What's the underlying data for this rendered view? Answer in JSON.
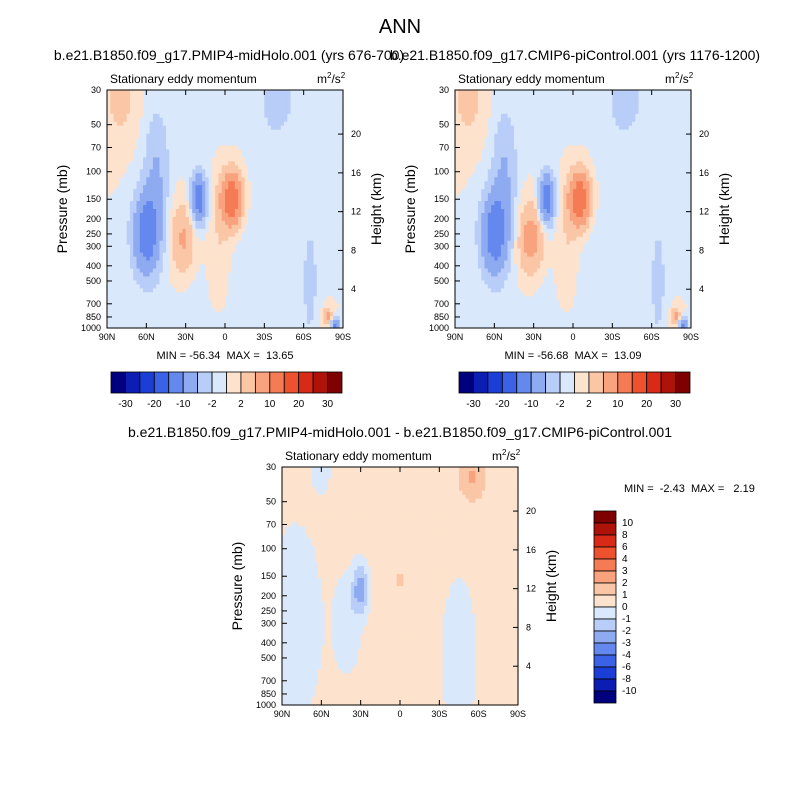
{
  "title": "ANN",
  "colors": {
    "neg": [
      "#00007f",
      "#0c1db3",
      "#1b3fd6",
      "#3b62e6",
      "#6488ee",
      "#8eaaf0",
      "#b8cdf7",
      "#dae8fb"
    ],
    "pos": [
      "#fde3cd",
      "#fbc6a6",
      "#f8a27e",
      "#f57b55",
      "#ee512d",
      "#d92a17",
      "#ae1209",
      "#7f0000"
    ],
    "lightBlue": "#d9e8fb",
    "lightPeach": "#fde4cf"
  },
  "chart_data": [
    {
      "id": "panel1",
      "type": "heatmap",
      "case_name": "b.e21.B1850.f09_g17.PMIP4-midHolo.001 (yrs 676-700)",
      "variable": "Stationary eddy momentum",
      "units_base": "m",
      "units_exp": "2",
      "units_den": "/s",
      "units_den_exp": "2",
      "ylabel": "Pressure (mb)",
      "ylabel_right": "Height (km)",
      "pressure_ticks": [
        "30",
        "50",
        "70",
        "100",
        "150",
        "200",
        "250",
        "300",
        "400",
        "500",
        "700",
        "850",
        "1000"
      ],
      "height_ticks": [
        "20",
        "16",
        "12",
        "8",
        "4"
      ],
      "lat_ticks": [
        "90N",
        "60N",
        "30N",
        "0",
        "30S",
        "60S",
        "90S"
      ],
      "stats": "MIN = -56.34  MAX =  13.65",
      "colorbar_labels": [
        "-30",
        "-20",
        "-10",
        "-2",
        "2",
        "10",
        "20",
        "30"
      ],
      "levels": [
        -30,
        -25,
        -20,
        -15,
        -10,
        -5,
        -2,
        0,
        2,
        5,
        10,
        15,
        20,
        25,
        30
      ]
    },
    {
      "id": "panel2",
      "type": "heatmap",
      "case_name": "b.e21.B1850.f09_g17.CMIP6-piControl.001 (yrs 1176-1200)",
      "variable": "Stationary eddy momentum",
      "units_base": "m",
      "units_exp": "2",
      "units_den": "/s",
      "units_den_exp": "2",
      "ylabel": "Pressure (mb)",
      "ylabel_right": "Height (km)",
      "pressure_ticks": [
        "30",
        "50",
        "70",
        "100",
        "150",
        "200",
        "250",
        "300",
        "400",
        "500",
        "700",
        "850",
        "1000"
      ],
      "height_ticks": [
        "20",
        "16",
        "12",
        "8",
        "4"
      ],
      "lat_ticks": [
        "90N",
        "60N",
        "30N",
        "0",
        "30S",
        "60S",
        "90S"
      ],
      "stats": "MIN = -56.68  MAX =  13.09",
      "colorbar_labels": [
        "-30",
        "-20",
        "-10",
        "-2",
        "2",
        "10",
        "20",
        "30"
      ],
      "levels": [
        -30,
        -25,
        -20,
        -15,
        -10,
        -5,
        -2,
        0,
        2,
        5,
        10,
        15,
        20,
        25,
        30
      ]
    },
    {
      "id": "panel3",
      "type": "heatmap",
      "case_name": "b.e21.B1850.f09_g17.PMIP4-midHolo.001 - b.e21.B1850.f09_g17.CMIP6-piControl.001",
      "variable": "Stationary eddy momentum",
      "units_base": "m",
      "units_exp": "2",
      "units_den": "/s",
      "units_den_exp": "2",
      "ylabel": "Pressure (mb)",
      "ylabel_right": "Height (km)",
      "pressure_ticks": [
        "30",
        "50",
        "70",
        "100",
        "150",
        "200",
        "250",
        "300",
        "400",
        "500",
        "700",
        "850",
        "1000"
      ],
      "height_ticks": [
        "20",
        "16",
        "12",
        "8",
        "4"
      ],
      "lat_ticks": [
        "90N",
        "60N",
        "30N",
        "0",
        "30S",
        "60S",
        "90S"
      ],
      "stats": "MIN =  -2.43  MAX =   2.19",
      "colorbar_labels": [
        "10",
        "8",
        "6",
        "4",
        "3",
        "2",
        "1",
        "0",
        "-1",
        "-2",
        "-3",
        "-4",
        "-6",
        "-8",
        "-10"
      ],
      "levels": [
        -10,
        -8,
        -6,
        -4,
        -3,
        -2,
        -1,
        0,
        1,
        2,
        3,
        4,
        6,
        8,
        10
      ]
    }
  ]
}
